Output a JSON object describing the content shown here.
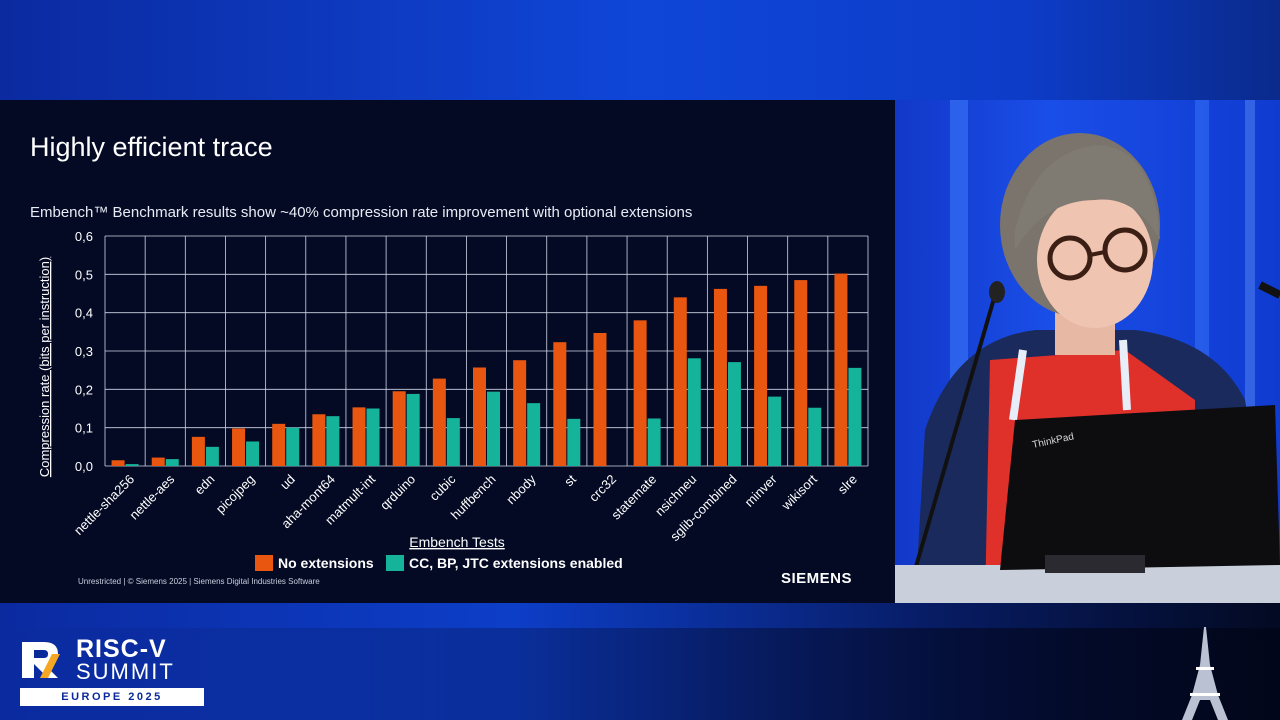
{
  "slide": {
    "title": "Highly efficient trace",
    "subtitle": "Embench™ Benchmark results show ~40% compression rate improvement with optional extensions",
    "footer": "Unrestricted | © Siemens 2025 | Siemens Digital Industries Software",
    "brand": "SIEMENS"
  },
  "chart_data": {
    "type": "bar",
    "xlabel": "Embench Tests",
    "ylabel": "Compression rate (bits per instruction)",
    "ylim": [
      0,
      0.6
    ],
    "yticks": [
      "0,0",
      "0,1",
      "0,2",
      "0,3",
      "0,4",
      "0,5",
      "0,6"
    ],
    "grid": true,
    "legend_position": "bottom",
    "categories": [
      "nettle-sha256",
      "nettle-aes",
      "edn",
      "picojpeg",
      "ud",
      "aha-mont64",
      "matmult-int",
      "qrduino",
      "cubic",
      "huffbench",
      "nbody",
      "st",
      "crc32",
      "statemate",
      "nsichneu",
      "sglib-combined",
      "minver",
      "wikisort",
      "slre"
    ],
    "series": [
      {
        "name": "No extensions",
        "color": "#e8560f",
        "values": [
          0.015,
          0.022,
          0.076,
          0.098,
          0.11,
          0.135,
          0.153,
          0.195,
          0.228,
          0.257,
          0.276,
          0.323,
          0.347,
          0.38,
          0.44,
          0.462,
          0.47,
          0.485,
          0.502
        ]
      },
      {
        "name": "CC, BP, JTC extensions enabled",
        "color": "#14b39a",
        "values": [
          0.005,
          0.018,
          0.05,
          0.064,
          0.1,
          0.13,
          0.15,
          0.188,
          0.125,
          0.194,
          0.164,
          0.123,
          0.0,
          0.124,
          0.281,
          0.271,
          0.181,
          0.152,
          0.256
        ]
      }
    ]
  },
  "conference": {
    "logo_line1": "RISC-V",
    "logo_line2": "SUMMIT",
    "logo_line3": "EUROPE 2025"
  },
  "speaker": {
    "laptop_brand": "ThinkPad"
  }
}
